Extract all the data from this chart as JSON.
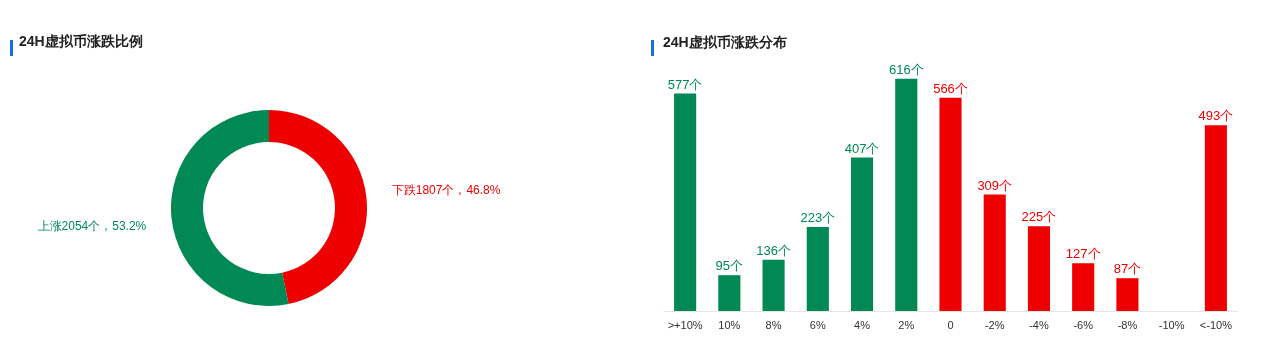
{
  "chart_data": [
    {
      "type": "donut",
      "title": "24H虚拟币涨跌比例",
      "categories": [
        "下跌1807个，46.8%",
        "上涨2054个，53.2%"
      ],
      "values": [
        1807,
        2054
      ],
      "colors": [
        "#ee0000",
        "#008855"
      ]
    },
    {
      "type": "bar",
      "title": "24H虚拟币涨跌分布",
      "categories": [
        ">+10%",
        "10%",
        "8%",
        "6%",
        "4%",
        "2%",
        "0",
        "-2%",
        "-4%",
        "-6%",
        "-8%",
        "-10%",
        "<-10%"
      ],
      "values": [
        577,
        95,
        136,
        223,
        407,
        616,
        566,
        309,
        225,
        127,
        87,
        null,
        493
      ],
      "colors": [
        "#008855",
        "#008855",
        "#008855",
        "#008855",
        "#008855",
        "#008855",
        "#ee0000",
        "#ee0000",
        "#ee0000",
        "#ee0000",
        "#ee0000",
        "#ee0000",
        "#ee0000"
      ],
      "value_labels": [
        "577个",
        "95个",
        "136个",
        "223个",
        "407个",
        "616个",
        "566个",
        "309个",
        "225个",
        "127个",
        "87个",
        null,
        "493个"
      ],
      "tick_labels": "x",
      "grid": false
    }
  ]
}
